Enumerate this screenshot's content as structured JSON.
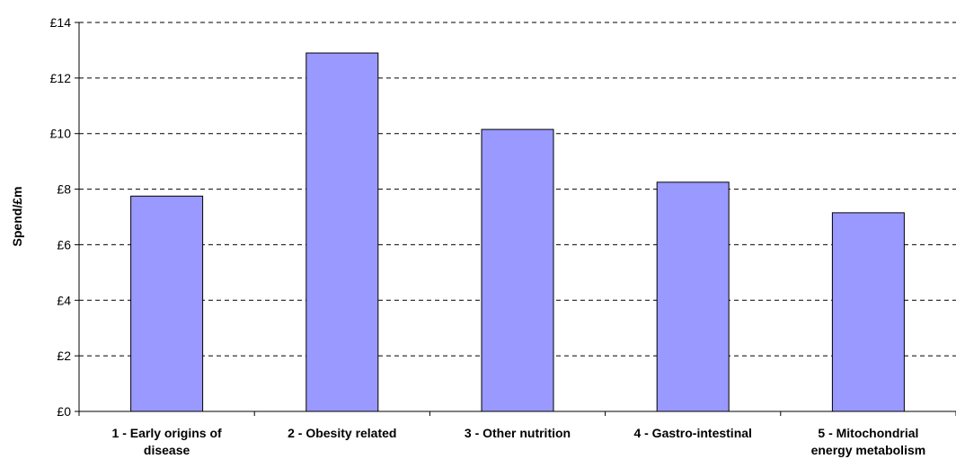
{
  "chart_data": {
    "type": "bar",
    "title": "",
    "xlabel": "",
    "ylabel": "Spend/£m",
    "ylim": [
      0,
      14
    ],
    "ytick_step": 2,
    "ytick_prefix": "£",
    "grid": true,
    "legend": "none",
    "bar_color": "#9999ff",
    "bar_edge_color": "#000000",
    "gridline_color": "#000000",
    "categories": [
      [
        "1 - Early origins of",
        "disease"
      ],
      [
        "2 - Obesity related"
      ],
      [
        "3 - Other nutrition"
      ],
      [
        "4 - Gastro-intestinal"
      ],
      [
        "5 - Mitochondrial",
        "energy metabolism"
      ]
    ],
    "values": [
      7.75,
      12.9,
      10.15,
      8.25,
      7.15
    ]
  }
}
